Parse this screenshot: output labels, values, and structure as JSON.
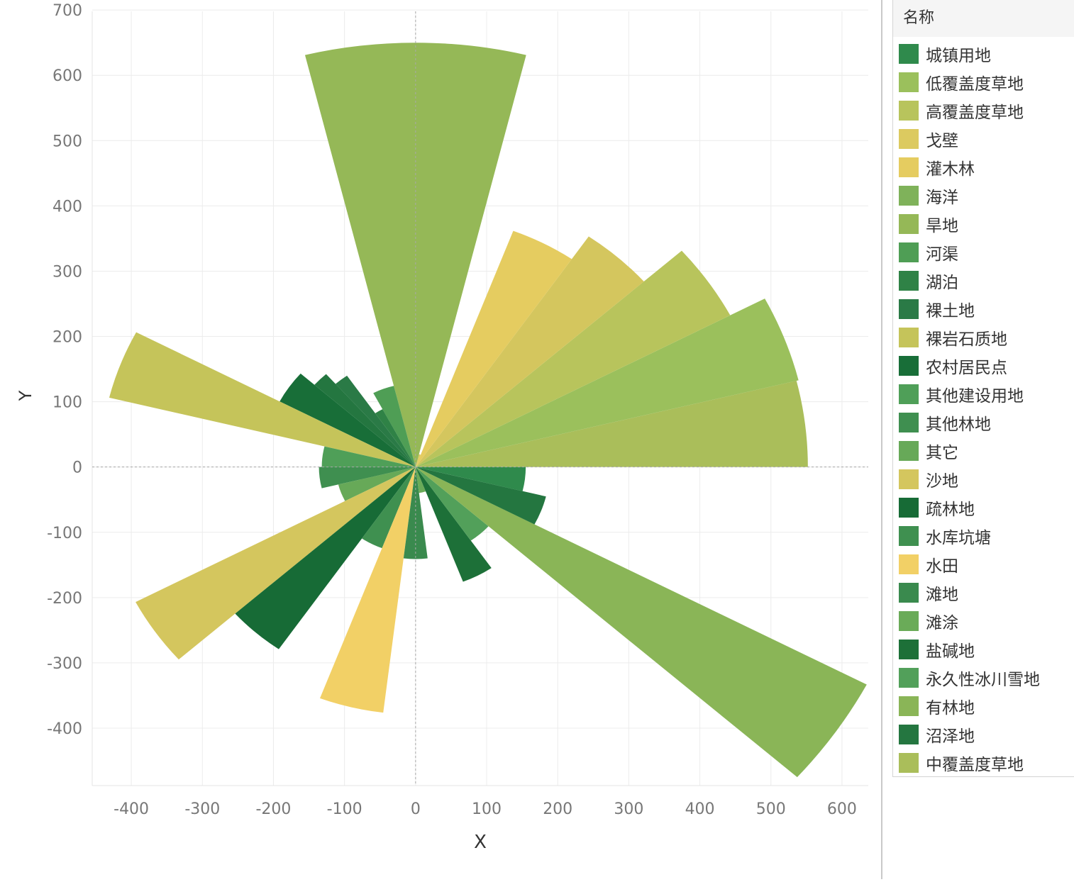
{
  "chart_data": {
    "type": "polar-bar",
    "xlabel": "X",
    "ylabel": "Y",
    "xlim": [
      -455,
      637
    ],
    "ylim": [
      -488,
      698
    ],
    "x_ticks": [
      -400,
      -300,
      -200,
      -100,
      0,
      100,
      200,
      300,
      400,
      500,
      600
    ],
    "y_ticks": [
      -400,
      -300,
      -200,
      -100,
      0,
      100,
      200,
      300,
      400,
      500,
      600,
      700
    ],
    "grid": true,
    "legend_position": "right",
    "legend_title": "名称",
    "categories": [
      {
        "name": "城镇用地",
        "color": "#2f8a4c"
      },
      {
        "name": "低覆盖度草地",
        "color": "#9bc05c"
      },
      {
        "name": "高覆盖度草地",
        "color": "#b8c45c"
      },
      {
        "name": "戈壁",
        "color": "#dcca60"
      },
      {
        "name": "灌木林",
        "color": "#e5cc60"
      },
      {
        "name": "海洋",
        "color": "#7fb25a"
      },
      {
        "name": "旱地",
        "color": "#95b857"
      },
      {
        "name": "河渠",
        "color": "#4f9e55"
      },
      {
        "name": "湖泊",
        "color": "#2f8246"
      },
      {
        "name": "裸土地",
        "color": "#2a7a46"
      },
      {
        "name": "裸岩石质地",
        "color": "#c5c45a"
      },
      {
        "name": "农村居民点",
        "color": "#186e38"
      },
      {
        "name": "其他建设用地",
        "color": "#4f9f58"
      },
      {
        "name": "其他林地",
        "color": "#3f8f50"
      },
      {
        "name": "其它",
        "color": "#67a958"
      },
      {
        "name": "沙地",
        "color": "#d4c65e"
      },
      {
        "name": "疏林地",
        "color": "#176b36"
      },
      {
        "name": "水库坑塘",
        "color": "#3f9050"
      },
      {
        "name": "水田",
        "color": "#f2d066"
      },
      {
        "name": "滩地",
        "color": "#3a8a4e"
      },
      {
        "name": "滩涂",
        "color": "#6aab58"
      },
      {
        "name": "盐碱地",
        "color": "#1d7038"
      },
      {
        "name": "永久性冰川雪地",
        "color": "#52a05a"
      },
      {
        "name": "有林地",
        "color": "#8ab557"
      },
      {
        "name": "沼泽地",
        "color": "#247640"
      },
      {
        "name": "中覆盖度草地",
        "color": "#aabe5a"
      }
    ],
    "sectors": [
      {
        "category": "中覆盖度草地",
        "start_deg": 0,
        "end_deg": 13.85,
        "radius": 552
      },
      {
        "category": "低覆盖度草地",
        "start_deg": 13.85,
        "end_deg": 27.7,
        "radius": 555
      },
      {
        "category": "高覆盖度草地",
        "start_deg": 27.7,
        "end_deg": 41.5,
        "radius": 500
      },
      {
        "category": "沙地",
        "start_deg": 41.5,
        "end_deg": 55.4,
        "radius": 429
      },
      {
        "category": "灌木林",
        "start_deg": 55.4,
        "end_deg": 69.2,
        "radius": 387
      },
      {
        "category": "戈壁",
        "start_deg": 69.2,
        "end_deg": 76.15,
        "radius": 20
      },
      {
        "category": "旱地",
        "start_deg": 76.15,
        "end_deg": 103.85,
        "radius": 650
      },
      {
        "category": "河渠",
        "start_deg": 103.85,
        "end_deg": 117.7,
        "radius": 128
      },
      {
        "category": "湖泊",
        "start_deg": 117.7,
        "end_deg": 124.6,
        "radius": 100
      },
      {
        "category": "裸土地",
        "start_deg": 124.6,
        "end_deg": 131.5,
        "radius": 170
      },
      {
        "category": "沼泽地",
        "start_deg": 131.5,
        "end_deg": 138.5,
        "radius": 190
      },
      {
        "category": "农村居民点",
        "start_deg": 138.5,
        "end_deg": 152.3,
        "radius": 216
      },
      {
        "category": "裸岩石质地",
        "start_deg": 152.3,
        "end_deg": 166.15,
        "radius": 444
      },
      {
        "category": "其他建设用地",
        "start_deg": 166.15,
        "end_deg": 180,
        "radius": 132
      },
      {
        "category": "其他林地",
        "start_deg": 180,
        "end_deg": 193.85,
        "radius": 136
      },
      {
        "category": "其它",
        "start_deg": 193.85,
        "end_deg": 207.7,
        "radius": 112
      },
      {
        "category": "沙地",
        "start_deg": 207.7,
        "end_deg": 221.5,
        "radius": 445
      },
      {
        "category": "疏林地",
        "start_deg": 221.5,
        "end_deg": 235.4,
        "radius": 339
      },
      {
        "category": "水库坑塘",
        "start_deg": 235.4,
        "end_deg": 249.2,
        "radius": 133
      },
      {
        "category": "水田",
        "start_deg": 249.2,
        "end_deg": 263.1,
        "radius": 379
      },
      {
        "category": "滩地",
        "start_deg": 263.1,
        "end_deg": 276.9,
        "radius": 141
      },
      {
        "category": "滩涂",
        "start_deg": 276.9,
        "end_deg": 290.8,
        "radius": 40
      },
      {
        "category": "盐碱地",
        "start_deg": 290.8,
        "end_deg": 304.6,
        "radius": 188
      },
      {
        "category": "永久性冰川雪地",
        "start_deg": 304.6,
        "end_deg": 318.5,
        "radius": 137
      },
      {
        "category": "有林地",
        "start_deg": 318.5,
        "end_deg": 332.3,
        "radius": 717
      },
      {
        "category": "沼泽地",
        "start_deg": 332.3,
        "end_deg": 346.2,
        "radius": 189
      },
      {
        "category": "城镇用地",
        "start_deg": 346.2,
        "end_deg": 360,
        "radius": 155
      }
    ]
  }
}
